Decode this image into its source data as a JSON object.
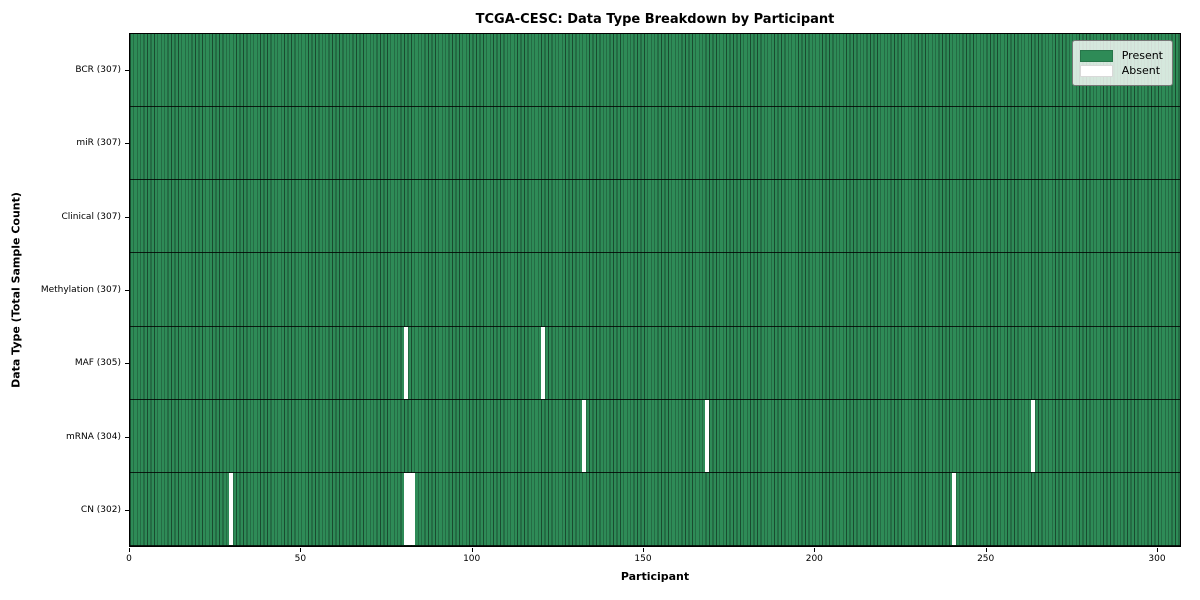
{
  "chart_data": {
    "type": "heatmap",
    "title": "TCGA-CESC: Data Type Breakdown by Participant",
    "xlabel": "Participant",
    "ylabel": "Data Type (Total Sample Count)",
    "n_participants": 307,
    "x_ticks": [
      0,
      50,
      100,
      150,
      200,
      250,
      300
    ],
    "x_range": [
      0,
      307
    ],
    "grid": false,
    "legend_position": "upper right",
    "colors": {
      "present": "#2e8b57",
      "absent": "#ffffff",
      "cell_border": "rgba(0,0,0,0.45)"
    },
    "legend": [
      {
        "label": "Present",
        "color": "#2e8b57"
      },
      {
        "label": "Absent",
        "color": "#ffffff"
      }
    ],
    "rows": [
      {
        "label": "BCR (307)",
        "data_type": "BCR",
        "present_count": 307,
        "absent_participants": []
      },
      {
        "label": "miR (307)",
        "data_type": "miR",
        "present_count": 307,
        "absent_participants": []
      },
      {
        "label": "Clinical (307)",
        "data_type": "Clinical",
        "present_count": 307,
        "absent_participants": []
      },
      {
        "label": "Methylation (307)",
        "data_type": "Methylation",
        "present_count": 307,
        "absent_participants": []
      },
      {
        "label": "MAF (305)",
        "data_type": "MAF",
        "present_count": 305,
        "absent_participants": [
          80,
          120
        ]
      },
      {
        "label": "mRNA (304)",
        "data_type": "mRNA",
        "present_count": 304,
        "absent_participants": [
          132,
          168,
          263
        ]
      },
      {
        "label": "CN (302)",
        "data_type": "CN",
        "present_count": 302,
        "absent_participants": [
          29,
          80,
          81,
          82,
          240
        ]
      }
    ]
  }
}
